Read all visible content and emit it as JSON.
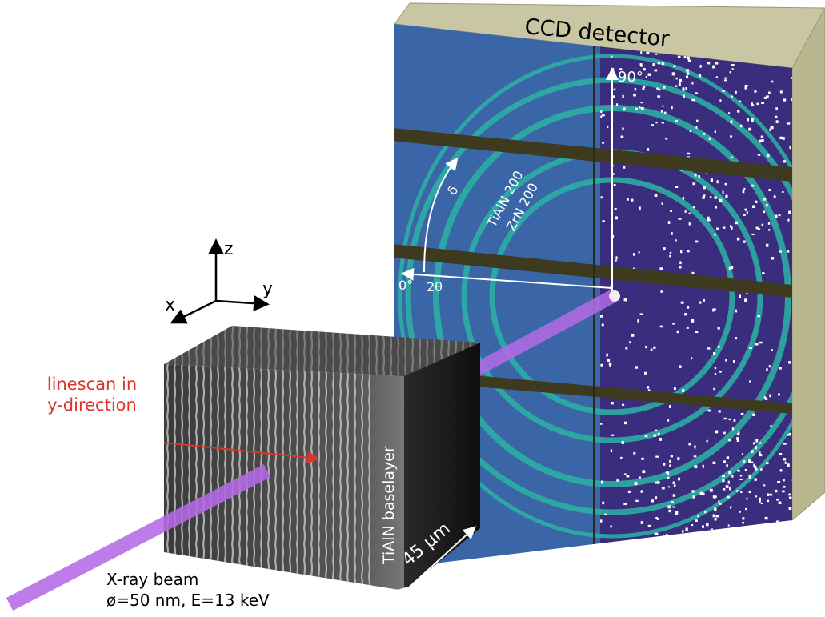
{
  "detector": {
    "title": "CCD detector",
    "angle_90": "90°",
    "delta": "δ",
    "ring_1": "TiAlN 200",
    "ring_2": "ZrN 200",
    "angle_0": "0°",
    "two_theta": "2θ"
  },
  "axes": {
    "z": "z",
    "y": "y",
    "x": "x"
  },
  "linescan": {
    "line_1": "linescan in",
    "line_2": "y-direction"
  },
  "sample": {
    "layer": "TiAlN baselayer",
    "width": "45 µm"
  },
  "beam": {
    "title": "X-ray beam",
    "spec": "ø=50 nm, E=13 keV"
  }
}
